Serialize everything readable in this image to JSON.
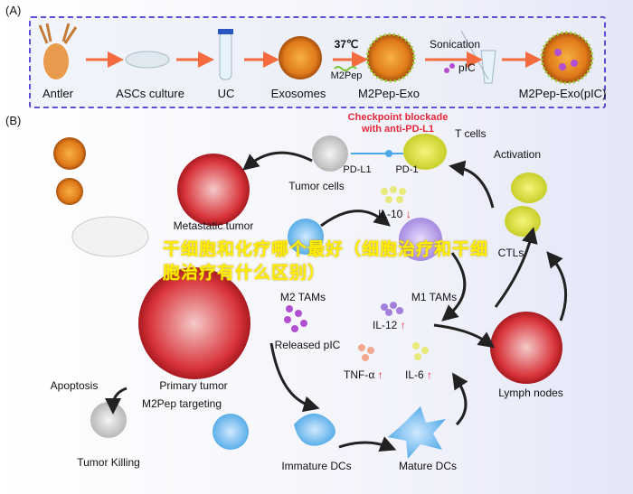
{
  "panel_a": {
    "label": "(A)",
    "steps": [
      "Antler",
      "ASCs culture",
      "UC",
      "Exosomes",
      "M2Pep-Exo",
      "M2Pep-Exo(pIC)"
    ],
    "temp": "37℃",
    "peptide": "M2Pep",
    "sonication": "Sonication",
    "pic": "pIC"
  },
  "panel_b": {
    "label": "(B)",
    "checkpoint_line1": "Checkpoint blockade",
    "checkpoint_line2": "with anti-PD-L1",
    "t_cells": "T cells",
    "pd_l1": "PD-L1",
    "pd_1": "PD-1",
    "tumor_cells": "Tumor cells",
    "activation": "Activation",
    "ctls": "CTLs",
    "metastatic_tumor": "Metastatic tumor",
    "il10": "IL-10",
    "m2_tams": "M2 TAMs",
    "m1_tams": "M1 TAMs",
    "il12": "IL-12",
    "released_pic": "Released pIC",
    "tnf": "TNF-α",
    "il6": "IL-6",
    "lymph_nodes": "Lymph nodes",
    "primary_tumor": "Primary tumor",
    "apoptosis": "Apoptosis",
    "m2pep_targeting": "M2Pep targeting",
    "tumor_killing": "Tumor Killing",
    "immature_dcs": "Immature DCs",
    "mature_dcs": "Mature DCs",
    "arrow_down": "↓",
    "arrow_up": "↑"
  },
  "overlay_text": "干细胞和化疗哪个最好（细胞治疗和干细胞治疗有什么区别）",
  "colors": {
    "dashed_border": "#5b4fd6",
    "highlight_red": "#e8283a",
    "overlay_yellow": "#ffee00",
    "arrow_orange": "#f36b3f"
  }
}
